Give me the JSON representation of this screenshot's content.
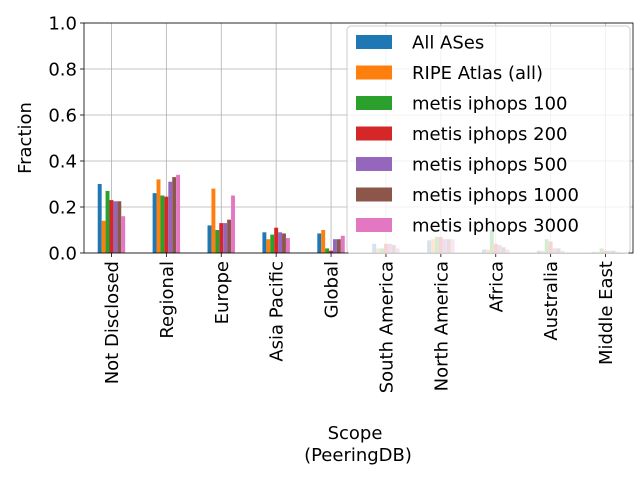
{
  "chart_data": {
    "type": "bar",
    "ylabel": "Fraction",
    "xlabel_lines": [
      "Scope",
      "(PeeringDB)"
    ],
    "ylim": [
      0,
      1.0
    ],
    "yticks": [
      "0.0",
      "0.2",
      "0.4",
      "0.6",
      "0.8",
      "1.0"
    ],
    "grid": true,
    "legend_placement": "top-right",
    "categories": [
      "Not Disclosed",
      "Regional",
      "Europe",
      "Asia Pacific",
      "Global",
      "South America",
      "North America",
      "Africa",
      "Australia",
      "Middle East"
    ],
    "series": [
      {
        "name": "All ASes",
        "color": "#1f77b4",
        "values": [
          0.3,
          0.26,
          0.12,
          0.09,
          0.085,
          0.04,
          0.055,
          0.015,
          0.01,
          0.005
        ]
      },
      {
        "name": "RIPE Atlas (all)",
        "color": "#ff7f0e",
        "values": [
          0.14,
          0.32,
          0.28,
          0.06,
          0.1,
          0.02,
          0.06,
          0.015,
          0.01,
          0.005
        ]
      },
      {
        "name": "metis iphops 100",
        "color": "#2ca02c",
        "values": [
          0.27,
          0.25,
          0.1,
          0.08,
          0.02,
          0.02,
          0.07,
          0.1,
          0.06,
          0.02
        ]
      },
      {
        "name": "metis iphops 200",
        "color": "#d62728",
        "values": [
          0.23,
          0.245,
          0.13,
          0.11,
          0.01,
          0.04,
          0.07,
          0.04,
          0.05,
          0.01
        ]
      },
      {
        "name": "metis iphops 500",
        "color": "#9467bd",
        "values": [
          0.225,
          0.31,
          0.13,
          0.09,
          0.06,
          0.04,
          0.06,
          0.035,
          0.02,
          0.01
        ]
      },
      {
        "name": "metis iphops 1000",
        "color": "#8c564b",
        "values": [
          0.225,
          0.33,
          0.145,
          0.085,
          0.06,
          0.035,
          0.06,
          0.025,
          0.02,
          0.01
        ]
      },
      {
        "name": "metis iphops 3000",
        "color": "#e377c2",
        "values": [
          0.16,
          0.34,
          0.25,
          0.065,
          0.075,
          0.02,
          0.06,
          0.015,
          0.01,
          0.005
        ]
      }
    ]
  }
}
